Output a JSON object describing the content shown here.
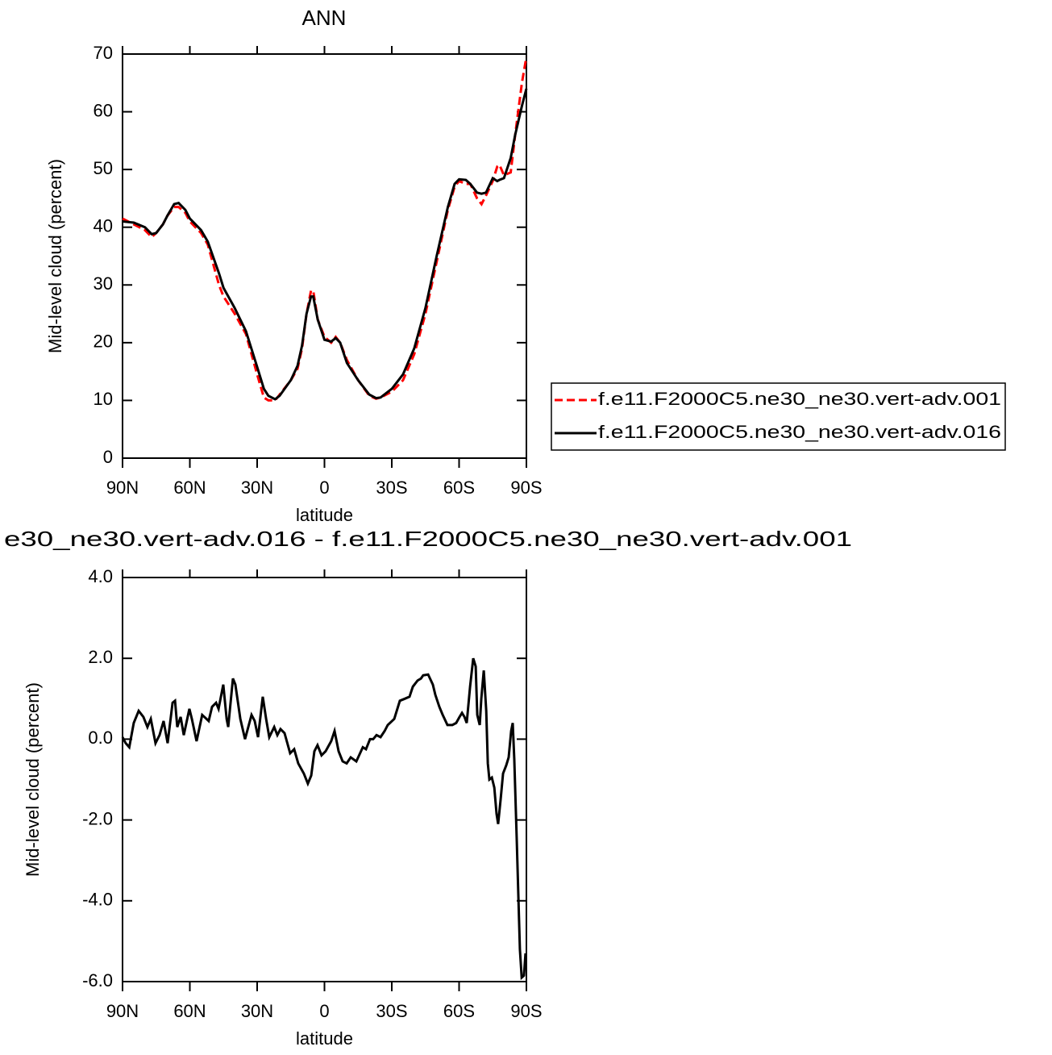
{
  "chart_data": [
    {
      "type": "line",
      "title": "ANN",
      "xlabel": "latitude",
      "ylabel": "Mid-level cloud (percent)",
      "xlim": [
        90,
        -90
      ],
      "xticks": [
        {
          "value": 90,
          "label": "90N"
        },
        {
          "value": 60,
          "label": "60N"
        },
        {
          "value": 30,
          "label": "30N"
        },
        0,
        {
          "value": -30,
          "label": "30S"
        },
        {
          "value": -60,
          "label": "60S"
        },
        {
          "value": -90,
          "label": "90S"
        }
      ],
      "ylim": [
        0,
        70
      ],
      "yticks": [
        0,
        10,
        20,
        30,
        40,
        50,
        60,
        70
      ],
      "legend": "right",
      "x": [
        90,
        85,
        80,
        77,
        75,
        72,
        70,
        67,
        65,
        62,
        60,
        55,
        52,
        47,
        45,
        40,
        35,
        30,
        27,
        25,
        22,
        20,
        15,
        12,
        10,
        8,
        6,
        5,
        3,
        0,
        -3,
        -5,
        -7,
        -10,
        -15,
        -20,
        -23,
        -25,
        -30,
        -35,
        -40,
        -45,
        -50,
        -55,
        -58,
        -60,
        -63,
        -65,
        -68,
        -70,
        -72,
        -75,
        -77,
        -78,
        -80,
        -83,
        -85,
        -88,
        -90
      ],
      "series": [
        {
          "name": "f.e11.F2000C5.ne30_ne30.vert-adv.001",
          "color": "#ff0000",
          "line_style": "dashed",
          "values": [
            41.5,
            40.5,
            39.5,
            38.3,
            39,
            40.5,
            42,
            43.5,
            43.5,
            42.5,
            41,
            39,
            37,
            30,
            28,
            25,
            21.5,
            14.5,
            10.5,
            10,
            10,
            11,
            13.5,
            15.5,
            19,
            25,
            29,
            29,
            24,
            21,
            20,
            21,
            20,
            17,
            13.5,
            10.8,
            10.3,
            10.5,
            11.5,
            13.5,
            18,
            25,
            34,
            43,
            47,
            48,
            47.5,
            47.5,
            45,
            44,
            45.5,
            48,
            50.5,
            50.8,
            49,
            49.5,
            56,
            65,
            69.5
          ]
        },
        {
          "name": "f.e11.F2000C5.ne30_ne30.vert-adv.016",
          "color": "#000000",
          "line_style": "solid",
          "values": [
            41,
            40.8,
            40,
            38.8,
            39,
            40.5,
            42,
            44,
            44.2,
            43,
            41.5,
            39.5,
            37.5,
            32,
            29.5,
            26,
            22,
            15.8,
            12,
            10.8,
            10.2,
            10.8,
            13.5,
            16,
            19.5,
            25,
            28,
            28,
            24,
            20.5,
            20.2,
            20.8,
            20,
            16.5,
            13.5,
            11,
            10.4,
            10.5,
            12,
            14.5,
            19,
            26,
            35,
            43.5,
            47.5,
            48.3,
            48.2,
            47.5,
            46,
            45.8,
            46,
            48.5,
            48,
            48.2,
            48.5,
            52,
            56,
            61,
            64
          ]
        }
      ]
    },
    {
      "type": "line",
      "title": "e30_ne30.vert-adv.016 - f.e11.F2000C5.ne30_ne30.vert-adv.001",
      "xlabel": "latitude",
      "ylabel": "Mid-level cloud (percent)",
      "xlim": [
        90,
        -90
      ],
      "xticks": [
        {
          "value": 90,
          "label": "90N"
        },
        {
          "value": 60,
          "label": "60N"
        },
        {
          "value": 30,
          "label": "30N"
        },
        0,
        {
          "value": -30,
          "label": "30S"
        },
        {
          "value": -60,
          "label": "60S"
        },
        {
          "value": -90,
          "label": "90S"
        }
      ],
      "ylim": [
        -6,
        4
      ],
      "yticks": [
        {
          "value": -6,
          "label": "-6.0"
        },
        {
          "value": -4,
          "label": "-4.0"
        },
        {
          "value": -2,
          "label": "-2.0"
        },
        {
          "value": 0,
          "label": "0.0"
        },
        {
          "value": 2,
          "label": "2.0"
        },
        {
          "value": 4,
          "label": "4.0"
        }
      ],
      "color": "#000000",
      "x": [
        90,
        88.6,
        87,
        85,
        82.8,
        80.7,
        78.9,
        77.4,
        75.3,
        73.5,
        71.7,
        69.9,
        67.7,
        66.6,
        65.6,
        64.1,
        62.7,
        60.2,
        59.1,
        57,
        54.5,
        51.6,
        50.1,
        48.3,
        47.2,
        45.1,
        43.6,
        42.9,
        40.8,
        39.7,
        37.5,
        35.4,
        32.5,
        31.1,
        29.6,
        27.5,
        26,
        24.6,
        22.4,
        21,
        19.6,
        17.8,
        15.3,
        13.5,
        11.7,
        9.2,
        7.4,
        5.9,
        4.5,
        3.1,
        1.3,
        -0.5,
        -3,
        -4.5,
        -6.3,
        -8.1,
        -9.9,
        -11.7,
        -14.2,
        -17.1,
        -18.5,
        -20.3,
        -21.7,
        -23.2,
        -25,
        -26.8,
        -28.2,
        -31.1,
        -33.6,
        -35.8,
        -37.9,
        -39.4,
        -41.5,
        -43,
        -44,
        -46.2,
        -48.3,
        -49.4,
        -51.2,
        -52.7,
        -54.8,
        -57,
        -58.7,
        -60.2,
        -61.3,
        -62.4,
        -63.4,
        -64.9,
        -66.3,
        -67.4,
        -68.1,
        -69.2,
        -69.9,
        -71,
        -72.1,
        -72.8,
        -73.5,
        -74.6,
        -75.7,
        -76.7,
        -77.4,
        -78.5,
        -79.6,
        -81,
        -82.1,
        -83.2,
        -83.9,
        -84.6,
        -85.7,
        -87.1,
        -87.9,
        -88.9,
        -89.6
      ],
      "values": [
        0.05,
        -0.1,
        -0.2,
        0.4,
        0.7,
        0.55,
        0.3,
        0.5,
        -0.1,
        0.1,
        0.45,
        -0.1,
        0.9,
        0.95,
        0.3,
        0.55,
        0.1,
        0.75,
        0.5,
        -0.05,
        0.6,
        0.45,
        0.8,
        0.9,
        0.75,
        1.35,
        0.5,
        0.3,
        1.5,
        1.35,
        0.5,
        0.0,
        0.6,
        0.45,
        0.05,
        1.05,
        0.5,
        0.05,
        0.3,
        0.1,
        0.25,
        0.15,
        -0.35,
        -0.25,
        -0.6,
        -0.85,
        -1.1,
        -0.9,
        -0.3,
        -0.15,
        -0.4,
        -0.3,
        -0.05,
        0.2,
        -0.3,
        -0.55,
        -0.6,
        -0.45,
        -0.55,
        -0.2,
        -0.25,
        0.0,
        0.0,
        0.1,
        0.05,
        0.2,
        0.35,
        0.5,
        0.95,
        1.0,
        1.05,
        1.3,
        1.45,
        1.5,
        1.58,
        1.6,
        1.35,
        1.1,
        0.8,
        0.6,
        0.35,
        0.35,
        0.4,
        0.55,
        0.65,
        0.55,
        0.4,
        1.3,
        2.0,
        1.8,
        0.6,
        0.35,
        1.0,
        1.7,
        0.7,
        -0.6,
        -1.0,
        -0.95,
        -1.2,
        -1.85,
        -2.1,
        -1.5,
        -0.85,
        -0.65,
        -0.45,
        0.2,
        0.4,
        -0.5,
        -2.5,
        -5.2,
        -5.9,
        -5.85,
        -5.3
      ]
    }
  ]
}
